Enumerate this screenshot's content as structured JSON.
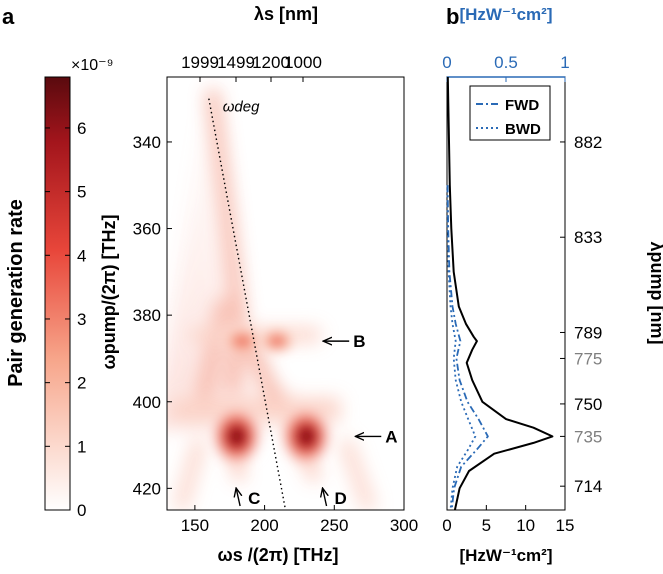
{
  "panel_labels": {
    "a": "a",
    "b": "b"
  },
  "colorbar": {
    "label": "Pair generation rate",
    "exponent_label": "×10⁻⁹",
    "range": [
      0,
      6.8
    ],
    "ticks": [
      "0",
      "1",
      "2",
      "3",
      "4",
      "5",
      "6"
    ],
    "colors": {
      "low": "#ffffff",
      "mid": "#e8463a",
      "high": "#5a0a0e"
    }
  },
  "chart_data": [
    {
      "type": "heatmap",
      "xlabel": "ωs /(2π) [THz]",
      "ylabel": "ωpump/(2π) [THz]",
      "top_xlabel": "λs [nm]",
      "xlim": [
        130,
        300
      ],
      "ylim": [
        425,
        325
      ],
      "x_ticks": [
        150,
        200,
        250,
        300
      ],
      "y_ticks": [
        340,
        360,
        380,
        400,
        420
      ],
      "top_x_ticks": [
        "1999",
        "1499",
        "1200",
        "1000"
      ],
      "degeneracy_line_label": "ωdeg",
      "annotations": [
        {
          "label": "A",
          "x": 255,
          "y": 408
        },
        {
          "label": "B",
          "x": 232,
          "y": 386
        },
        {
          "label": "C",
          "x": 181,
          "y": 419
        },
        {
          "label": "D",
          "x": 243,
          "y": 419
        }
      ],
      "peaks": [
        {
          "x": 180,
          "y": 408,
          "value": 6.8
        },
        {
          "x": 230,
          "y": 408,
          "value": 6.8
        },
        {
          "x": 184,
          "y": 386,
          "value": 2.6
        },
        {
          "x": 209,
          "y": 386,
          "value": 2.6
        }
      ]
    },
    {
      "type": "line",
      "xlabel": "[HzW⁻¹cm²]",
      "top_xlabel": "[HzW⁻¹cm²]",
      "right_ylabel": "λpump [nm]",
      "xlim": [
        0,
        15
      ],
      "top_xlim": [
        0,
        1
      ],
      "x_ticks": [
        0,
        5,
        10,
        15
      ],
      "top_x_ticks": [
        "0",
        "0.5",
        "1"
      ],
      "right_y_ticks": [
        "882",
        "833",
        "789",
        "775",
        "750",
        "735",
        "714"
      ],
      "highlighted_ticks": [
        "775",
        "735"
      ],
      "legend_position": "top",
      "series": [
        {
          "name": "",
          "style": "solid",
          "points": [
            [
              325,
              0.1
            ],
            [
              340,
              0.25
            ],
            [
              350,
              0.35
            ],
            [
              360,
              0.55
            ],
            [
              370,
              0.85
            ],
            [
              378,
              1.5
            ],
            [
              382,
              2.4
            ],
            [
              385,
              3.4
            ],
            [
              386,
              3.8
            ],
            [
              388,
              3.2
            ],
            [
              391,
              2.5
            ],
            [
              395,
              3.2
            ],
            [
              400,
              4.5
            ],
            [
              404,
              7.5
            ],
            [
              406,
              11
            ],
            [
              408,
              13.4
            ],
            [
              409.5,
              11
            ],
            [
              412,
              6
            ],
            [
              416,
              2.8
            ],
            [
              420,
              1.6
            ],
            [
              425,
              1.0
            ]
          ]
        },
        {
          "name": "FWD",
          "style": "dashdot",
          "points": [
            [
              350,
              0.08
            ],
            [
              360,
              0.15
            ],
            [
              370,
              0.3
            ],
            [
              378,
              0.7
            ],
            [
              382,
              1.1
            ],
            [
              386,
              1.7
            ],
            [
              390,
              1.2
            ],
            [
              395,
              1.6
            ],
            [
              400,
              2.6
            ],
            [
              404,
              4.0
            ],
            [
              408,
              5.2
            ],
            [
              411,
              3.8
            ],
            [
              415,
              1.8
            ],
            [
              420,
              0.9
            ],
            [
              425,
              0.6
            ]
          ]
        },
        {
          "name": "BWD",
          "style": "dotted",
          "points": [
            [
              350,
              0.05
            ],
            [
              360,
              0.1
            ],
            [
              370,
              0.2
            ],
            [
              378,
              0.45
            ],
            [
              382,
              0.7
            ],
            [
              386,
              1.1
            ],
            [
              390,
              0.85
            ],
            [
              395,
              1.1
            ],
            [
              400,
              1.8
            ],
            [
              404,
              2.7
            ],
            [
              408,
              3.6
            ],
            [
              411,
              2.7
            ],
            [
              415,
              1.3
            ],
            [
              420,
              0.7
            ],
            [
              425,
              0.45
            ]
          ]
        }
      ]
    }
  ]
}
